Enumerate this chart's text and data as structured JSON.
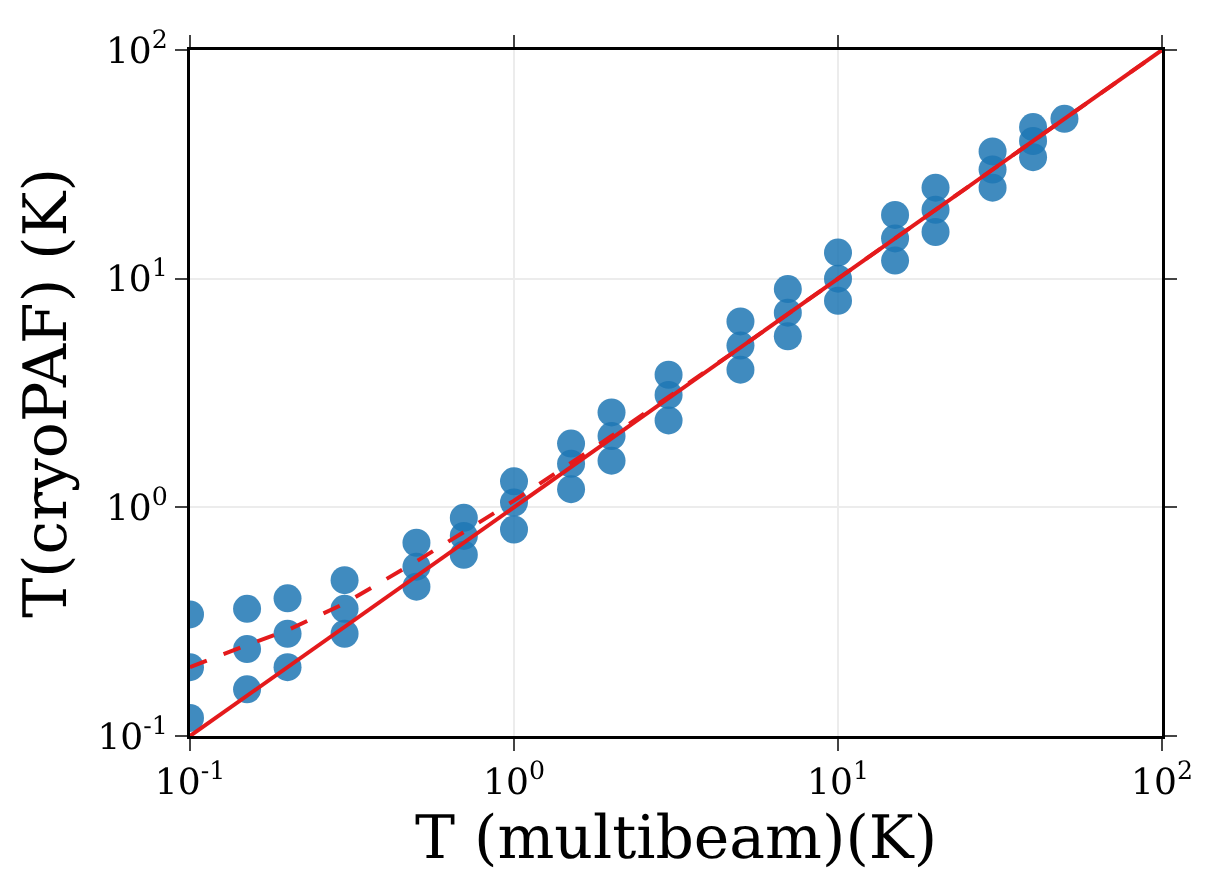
{
  "chart_data": {
    "type": "scatter",
    "xlabel": "T (multibeam)(K)",
    "ylabel": "T(cryoPAF) (K)",
    "log": "xy",
    "grid": true,
    "marker": "circle",
    "xlim": [
      0.1,
      100
    ],
    "ylim": [
      0.1,
      100
    ],
    "xticks": [
      {
        "value": 0.1,
        "label": "10$^{-1}$"
      },
      {
        "value": 1,
        "label": "10$^{0}$"
      },
      {
        "value": 10,
        "label": "10$^{1}$"
      },
      {
        "value": 100,
        "label": "10$^{2}$"
      }
    ],
    "yticks": [
      {
        "value": 0.1,
        "label": "10$^{-1}$"
      },
      {
        "value": 1,
        "label": "10$^{0}$"
      },
      {
        "value": 10,
        "label": "10$^{1}$"
      },
      {
        "value": 100,
        "label": "10$^{2}$"
      }
    ],
    "series": [
      {
        "color": "#1f77b4",
        "x": [
          0.1,
          0.1,
          0.1,
          0.15,
          0.15,
          0.15,
          0.2,
          0.2,
          0.2,
          0.3,
          0.3,
          0.3,
          0.5,
          0.5,
          0.5,
          0.7,
          0.7,
          0.7,
          1,
          1,
          1,
          1.5,
          1.5,
          1.5,
          2,
          2,
          2,
          3,
          3,
          3,
          5,
          5,
          5,
          7,
          7,
          7,
          10,
          10,
          10,
          15,
          15,
          15,
          20,
          20,
          20,
          30,
          30,
          30,
          40,
          40,
          40,
          50
        ],
        "values": [
          0.34,
          0.2,
          0.12,
          0.36,
          0.24,
          0.16,
          0.4,
          0.28,
          0.2,
          0.48,
          0.36,
          0.28,
          0.7,
          0.55,
          0.45,
          0.9,
          0.75,
          0.62,
          1.3,
          1.05,
          0.8,
          1.9,
          1.55,
          1.2,
          2.6,
          2.05,
          1.6,
          3.8,
          3.1,
          2.4,
          6.5,
          5.1,
          4,
          9,
          7.1,
          5.6,
          13,
          10,
          8,
          19,
          15,
          12,
          25,
          20,
          16,
          36,
          30,
          25,
          46,
          40,
          34,
          50
        ]
      },
      {
        "type": "line",
        "color": "#e41a1c",
        "line_style": "solid",
        "marker": "none",
        "x": [
          0.1,
          100
        ],
        "values": [
          0.1,
          100
        ]
      },
      {
        "type": "line",
        "color": "#e41a1c",
        "line_style": "dashed",
        "marker": "none",
        "x": [
          0.1,
          0.15,
          0.2,
          0.3,
          0.5,
          0.7,
          1,
          2,
          5,
          10,
          100
        ],
        "values": [
          0.2,
          0.25,
          0.29,
          0.38,
          0.58,
          0.78,
          1.07,
          2.05,
          5,
          10,
          100
        ]
      }
    ]
  }
}
